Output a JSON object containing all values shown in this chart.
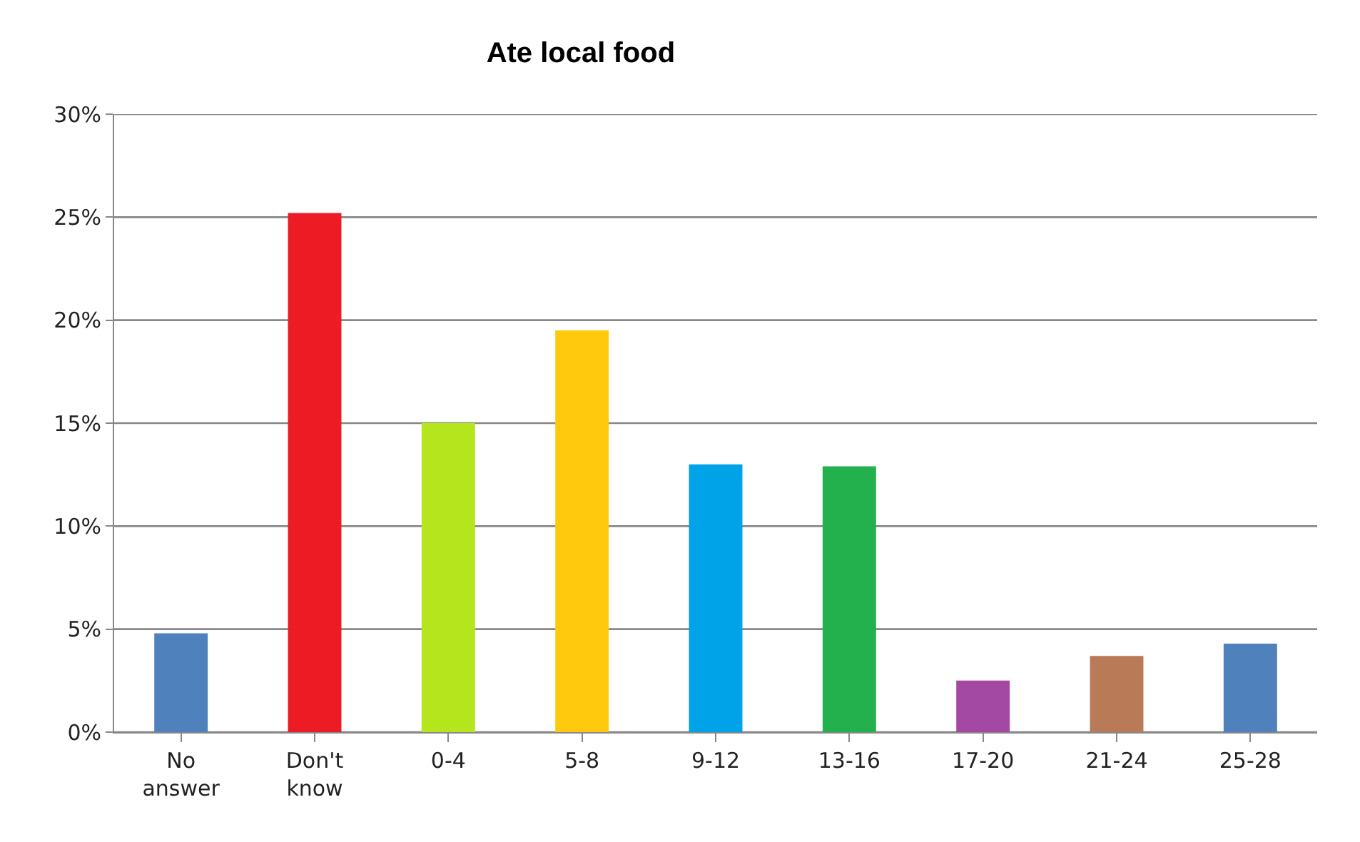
{
  "chart_data": {
    "type": "bar",
    "title": "Ate local food",
    "categories": [
      "No answer",
      "Don't know",
      "0-4",
      "5-8",
      "9-12",
      "13-16",
      "17-20",
      "21-24",
      "25-28"
    ],
    "values": [
      4.8,
      25.2,
      15.0,
      19.5,
      13.0,
      12.9,
      2.5,
      3.7,
      4.3
    ],
    "colors": [
      "#4f81bd",
      "#ed1c24",
      "#b5e61d",
      "#ffc90e",
      "#00a2e8",
      "#22b14c",
      "#a349a4",
      "#b97a57",
      "#4f81bd"
    ],
    "ylim": [
      0,
      30
    ],
    "yticks": [
      {
        "value": 0,
        "label": "0%"
      },
      {
        "value": 5,
        "label": "5%"
      },
      {
        "value": 10,
        "label": "10%"
      },
      {
        "value": 15,
        "label": "15%"
      },
      {
        "value": 20,
        "label": "20%"
      },
      {
        "value": 25,
        "label": "25%"
      },
      {
        "value": 30,
        "label": "30%"
      }
    ],
    "grid": "y"
  }
}
